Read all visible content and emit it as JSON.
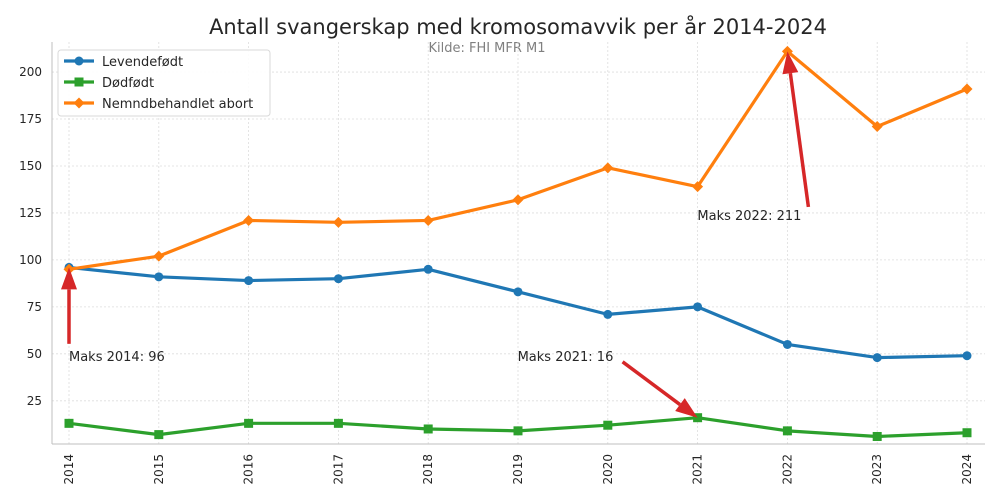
{
  "chart_data": {
    "type": "line",
    "title": "Antall svangerskap med kromosomavvik per år 2014-2024",
    "subtitle": "Kilde: FHI MFR M1",
    "xlabel": "",
    "ylabel": "",
    "x": [
      "2014",
      "2015",
      "2016",
      "2017",
      "2018",
      "2019",
      "2020",
      "2021",
      "2022",
      "2023",
      "2024"
    ],
    "ylim": [
      2,
      216
    ],
    "yticks": [
      25,
      50,
      75,
      100,
      125,
      150,
      175,
      200
    ],
    "grid": true,
    "legend_position": "top-left",
    "series": [
      {
        "name": "Levendefødt",
        "color": "#1f77b4",
        "marker": "circle",
        "values": [
          96,
          91,
          89,
          90,
          95,
          83,
          71,
          75,
          55,
          48,
          49
        ]
      },
      {
        "name": "Dødfødt",
        "color": "#2ca02c",
        "marker": "square",
        "values": [
          13,
          7,
          13,
          13,
          10,
          9,
          12,
          16,
          9,
          6,
          8
        ]
      },
      {
        "name": "Nemndbehandlet abort",
        "color": "#ff7f0e",
        "marker": "diamond",
        "values": [
          95,
          102,
          121,
          120,
          121,
          132,
          149,
          139,
          211,
          171,
          191
        ]
      }
    ],
    "annotations": [
      {
        "text": "Maks 2014: 96",
        "x": "2014",
        "y": 96,
        "text_y": 50,
        "color": "#d62728"
      },
      {
        "text": "Maks 2021: 16",
        "x": "2021",
        "y": 16,
        "text_y": 50,
        "color": "#d62728"
      },
      {
        "text": "Maks 2022: 211",
        "x": "2022",
        "y": 211,
        "text_y": 125,
        "color": "#d62728"
      }
    ]
  }
}
